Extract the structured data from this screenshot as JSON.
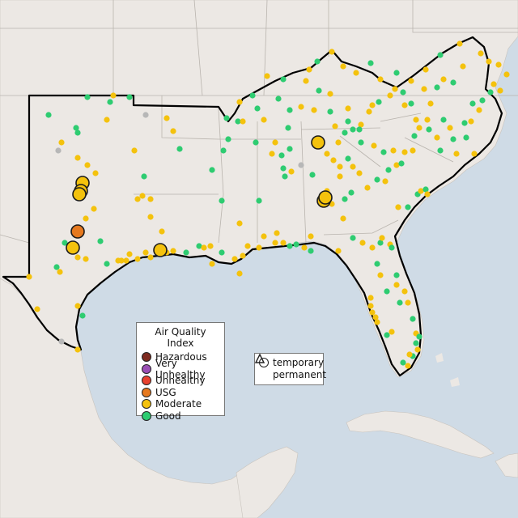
{
  "legend": {
    "title": "Air Quality Index",
    "categories": [
      {
        "label": "Hazardous",
        "color": "#7e2b20"
      },
      {
        "label": "Very Unhealthy",
        "color": "#9a4fb5"
      },
      {
        "label": "Unhealthy",
        "color": "#e8412e"
      },
      {
        "label": "USG",
        "color": "#e6791f"
      },
      {
        "label": "Moderate",
        "color": "#f4c20d"
      },
      {
        "label": "Good",
        "color": "#2ecc71"
      }
    ]
  },
  "monitor_types": {
    "temporary": "temporary",
    "permanent": "permanent"
  },
  "colors": {
    "water": "#cfdbe6",
    "land": "#ece8e4",
    "border": "#000000",
    "no_data": "#b7b7b7"
  }
}
